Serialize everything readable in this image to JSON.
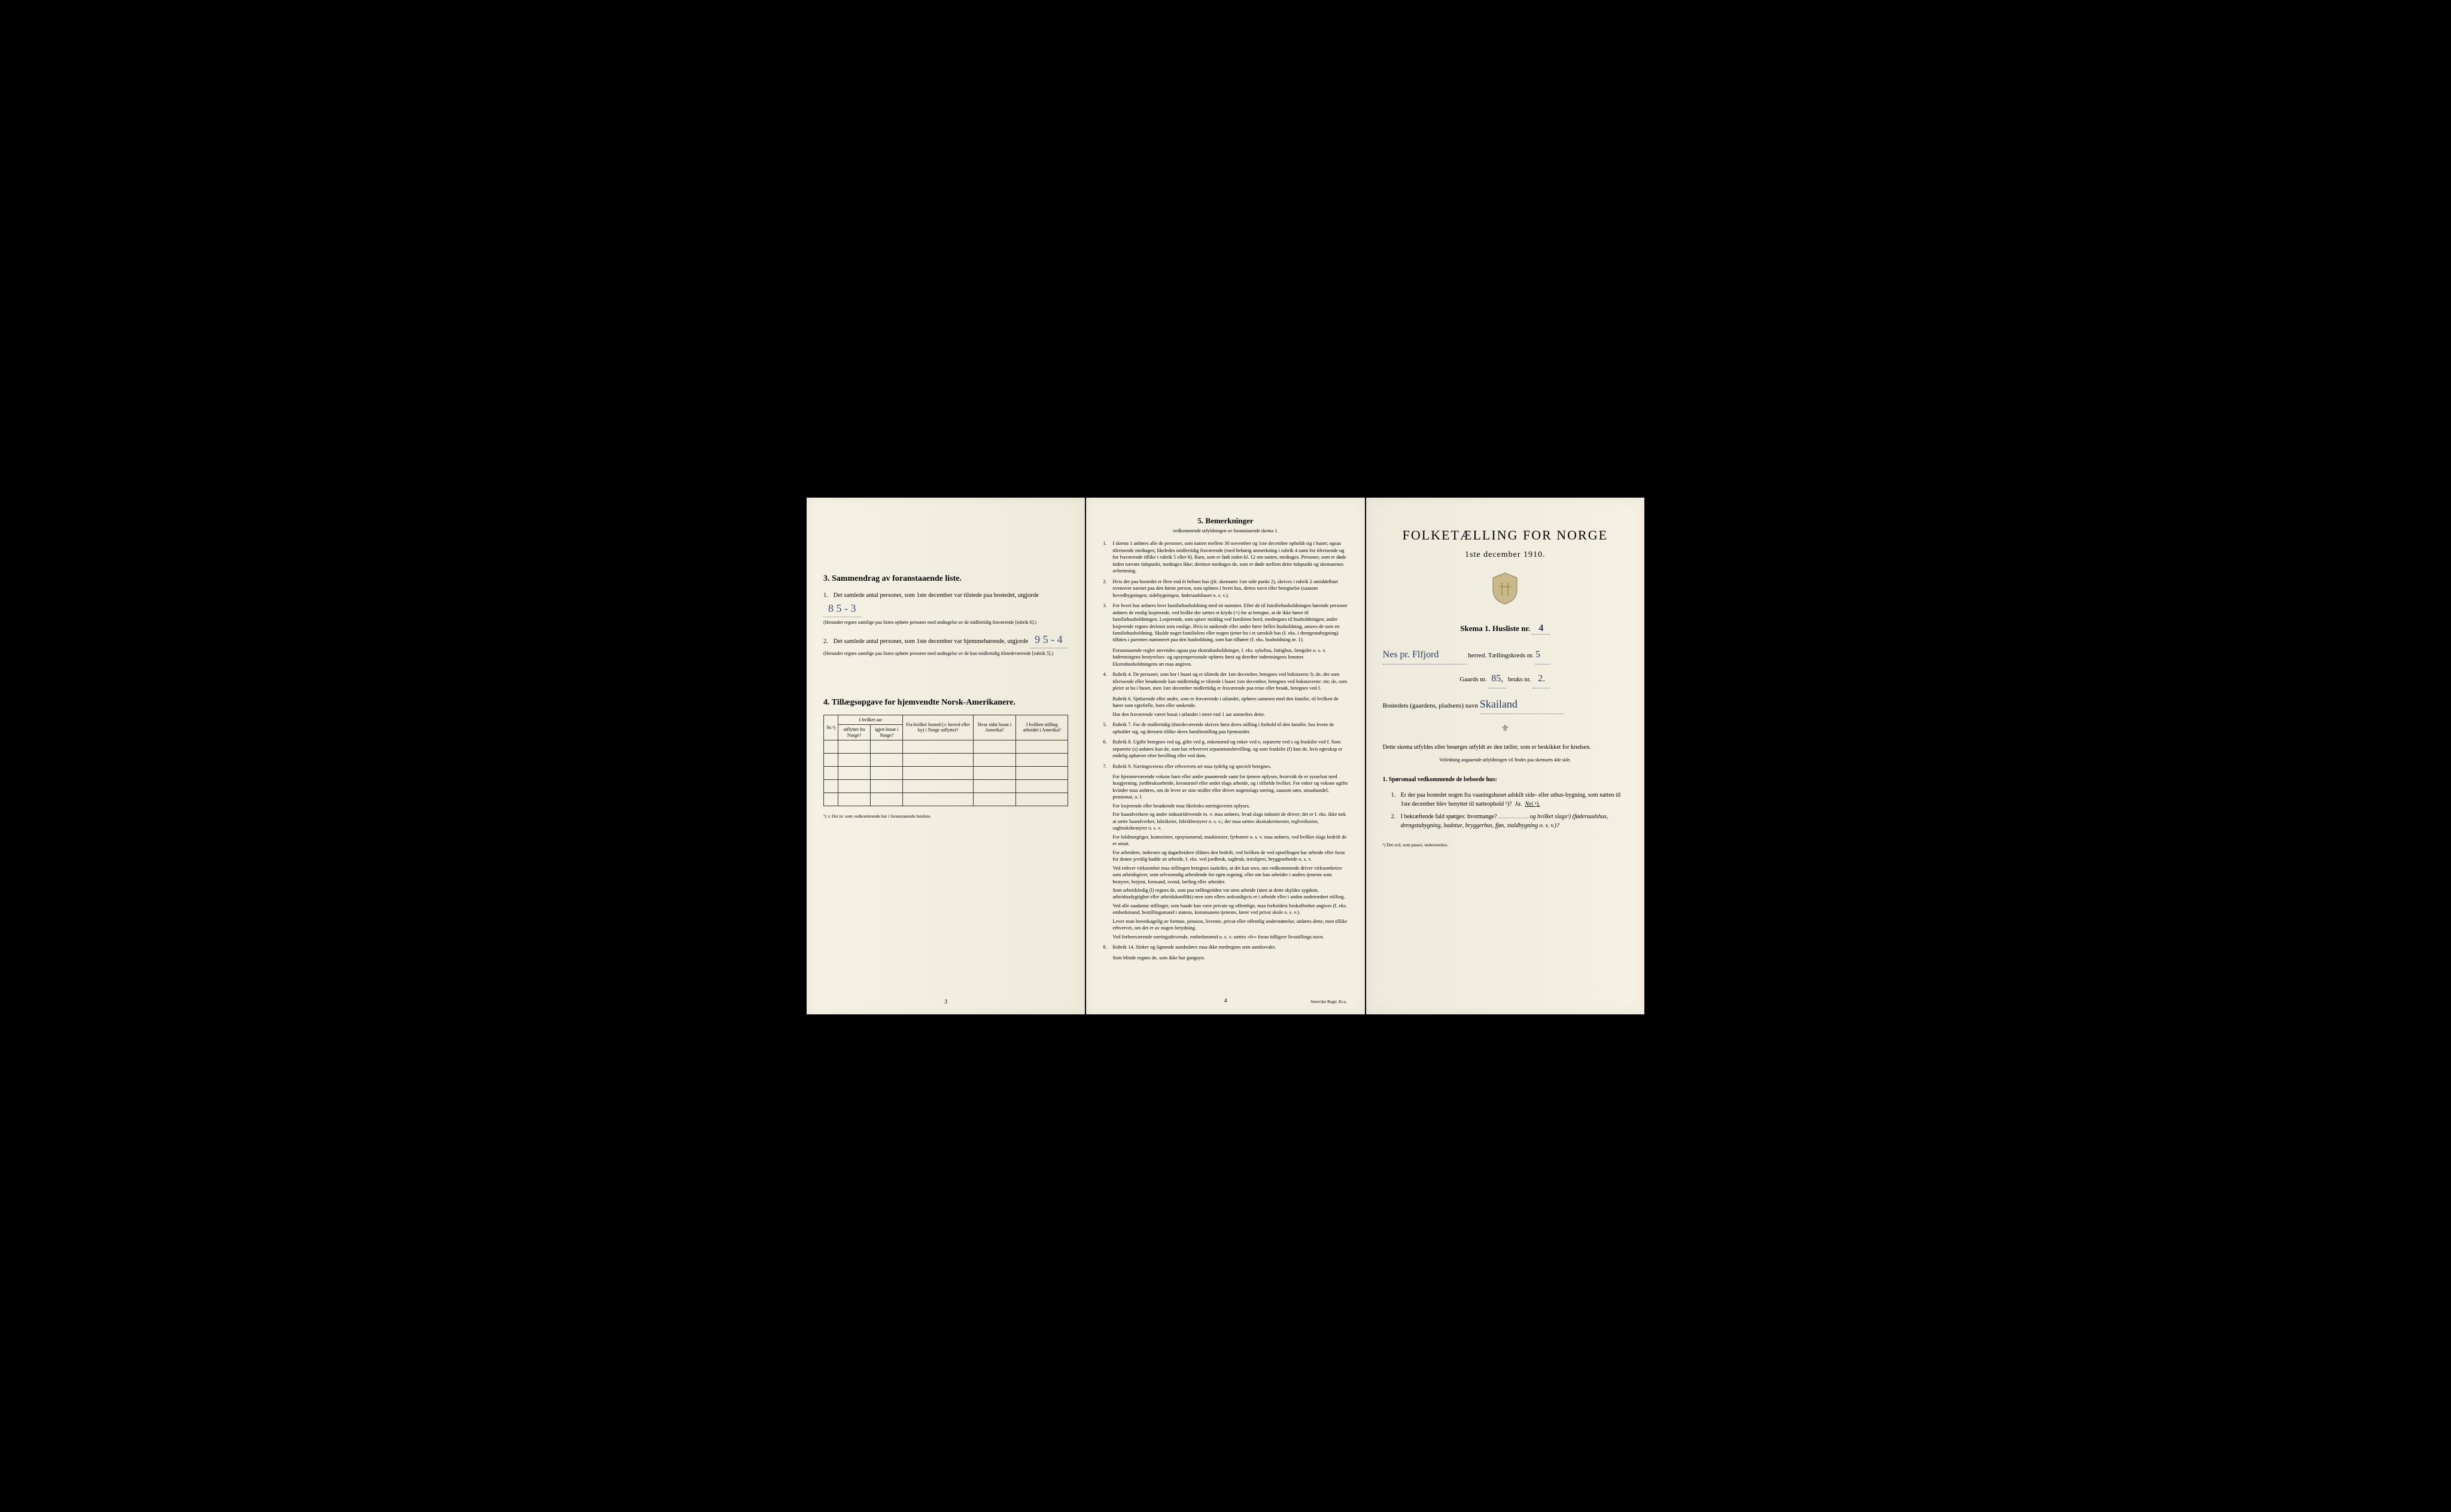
{
  "left": {
    "section3_title": "3.   Sammendrag av foranstaaende liste.",
    "item1_text": "Det samlede antal personer, som 1ste december var tilstede paa bostedet, utgjorde",
    "item1_value": "8    5 - 3",
    "item1_note": "(Herunder regnes samtlige paa listen opførte personer med undtagelse av de midlertidig fraværende [rubrik 6].)",
    "item2_text": "Det samlede antal personer, som 1ste december var hjemmehørende, utgjorde",
    "item2_value": "9   5 - 4",
    "item2_note": "(Herunder regnes samtlige paa listen opførte personer med undtagelse av de kun midlertidig tilstedeværende [rubrik 5].)",
    "section4_title": "4. Tillægsopgave for hjemvendte Norsk-Amerikanere.",
    "table": {
      "headers": {
        "nr": "Nr.¹)",
        "hvilket_aar": "I hvilket aar",
        "utflyttet": "utflyttet fra Norge?",
        "igjen_bosat": "igjen bosat i Norge?",
        "fra_bosted": "Fra hvilket bosted (ɔ: herred eller by) i Norge utflyttet?",
        "hvor_sidst": "Hvor sidst bosat i Amerika?",
        "hvilken_stilling": "I hvilken stilling arbeidet i Amerika?"
      }
    },
    "table_footnote": "¹) ɔ: Det nr. som vedkommende har i foranstaaende husliste.",
    "page_num": "3"
  },
  "middle": {
    "title": "5.   Bemerkninger",
    "subtitle": "vedkommende utfyldningen av foranstaaende skema 1.",
    "notes": [
      {
        "n": "1.",
        "t": "I skema 1 anføres alle de personer, som natten mellem 30 november og 1ste december opholdt sig i huset; ogsaa tilreisende medtages; likeledes midlertidig fraværende (med behørig anmerkning i rubrik 4 samt for tilreisende og for fraværende tillike i rubrik 5 eller 6). Barn, som er født inden kl. 12 om natten, medtages. Personer, som er døde inden nævnte tidspunkt, medtages ikke; derimot medtages de, som er døde mellem dette tidspunkt og skemaernes avhentning."
      },
      {
        "n": "2.",
        "t": "Hvis der paa bostedet er flere end ét beboet hus (jfr. skemaets 1ste side punkt 2), skrives i rubrik 2 umiddelbart ovenover navnet paa den første person, som opføres i hvert hus, dettes navn eller betegnelse (saasom hovedbygningen, sidebygningen, føderaadshuset o. s. v.)."
      },
      {
        "n": "3.",
        "t": "For hvert hus anføres hver familiehusholdning med sit nummer. Efter de til familiehusholdningen hørende personer anføres de enslig losjerende, ved hvilke der sættes et kryds (×) for at betegne, at de ikke hører til familiehusholdningen. Losjerende, som spiser middag ved familiens bord, medregnes til husholdningen; andre losjerende regnes derimot som enslige. Hvis to søskende eller andre fører fælles husholdning, ansees de som en familiehusholdning. Skulde noget familielem eller nogen tjener bo i et særskilt hus (f. eks. i drengestubygning) tilføies i parentes nummeret paa den husholdning, som han tilhører (f. eks. husholdning nr. 1)."
      },
      {
        "n": "",
        "t": "Foranstaaende regler anvendes ogsaa paa ekstrahusholdninger, f. eks. sykehus, fattighus, fængsler o. s. v. Indretningens bestyrelses- og opsynspersonale opføres først og derefter indretningens lemmer. Ekstrahusholdningens art maa angives."
      },
      {
        "n": "4.",
        "t": "Rubrik 4. De personer, som bor i huset og er tilstede der 1ste december, betegnes ved bokstaven: b; de, der som tilreisende eller besøkende kun midlertidig er tilstede i huset 1ste december, betegnes ved bokstaverne: mt; de, som pleier at bo i huset, men 1ste december midlertidig er fraværende paa reise eller besøk, betegnes ved f."
      },
      {
        "n": "",
        "t": "Rubrik 6. Sjøfarende eller andre, som er fraværende i utlandet, opføres sammen med den familie, til hvilken de hører som egtefælle, barn eller søskende."
      },
      {
        "n": "",
        "t": "Har den fraværende været bosat i utlandet i mere end 1 aar anmerkes dette."
      },
      {
        "n": "5.",
        "t": "Rubrik 7. For de midlertidig tilstedeværende skrives først deres stilling i forhold til den familie, hos hvem de opholder sig, og dernæst tillike deres familiestilling paa hjemstedet."
      },
      {
        "n": "6.",
        "t": "Rubrik 8. Ugifte betegnes ved ug, gifte ved g, enkemænd og enker ved e, separerte ved s og fraskilte ved f. Som separerte (s) anføres kun de, som har erhvervet separationsbevilling, og som fraskilte (f) kun de, hvis egteskap er endelig ophævet efter bevilling eller ved dom."
      },
      {
        "n": "7.",
        "t": "Rubrik 9. Næringsveiens eller erhvervets art maa tydelig og specielt betegnes."
      },
      {
        "n": "",
        "t": "For hjemmeværende voksne barn eller andre paarørende samt for tjenere oplyses, hvorvidt de er sysselsat med husgjerning, jordbruksarbeide, kreaturstel eller andet slags arbeide, og i tilfælde hvilket. For enker og voksne ugifte kvinder maa anføres, om de lever av sine midler eller driver nogenslags næring, saasom søm, smaahandel, pensionat, o. l."
      },
      {
        "n": "",
        "t": "For losjerende eller besøkende maa likeledes næringsveien oplyses."
      },
      {
        "n": "",
        "t": "For haandverkere og andre industridrivende m. v. maa anføres, hvad slags industri de driver; det er f. eks. ikke nok at sætte haandverker, fabrikeier, fabrikbestyrer o. s. v.; der maa sættes skomakermester, teglverkseier, sagbruksbestyrer o. s. v."
      },
      {
        "n": "",
        "t": "For fuldmægtiger, kontorister, opsynsmænd, maskinister, fyrbotere o. s. v. maa anføres, ved hvilket slags bedrift de er ansat."
      },
      {
        "n": "",
        "t": "For arbeidere, inderster og dagarbeidere tilføies den bedrift, ved hvilken de ved optællingen har arbeide eller forut for denne jevnlig hadde sit arbeide, f. eks. ved jordbruk, sagbruk, træsliperi, bryggearbeide o. s. v."
      },
      {
        "n": "",
        "t": "Ved enhver virksomhet maa stillingen betegnes saaledes, at det kan sees, om vedkommende driver virksomheten som arbeidsgiver, som selvstændig arbeidende for egen regning, eller om han arbeider i andres tjeneste som bestyrer, betjent, formand, svend, lærling eller arbeider."
      },
      {
        "n": "",
        "t": "Som arbeidsledig (l) regnes de, som paa tællingstiden var uten arbeide (uten at dette skyldes sygdom, arbeidsudygtighet eller arbeidskonflikt) men som ellers sedvanligvis er i arbeide eller i anden underordnet stilling."
      },
      {
        "n": "",
        "t": "Ved alle saadanne stillinger, som baade kan være private og offentlige, maa forholdets beskaffenhet angives (f. eks. embedsmand, bestillingsmand i statens, kommunens tjeneste, lærer ved privat skole o. s. v.)."
      },
      {
        "n": "",
        "t": "Lever man hovedsagelig av formue, pension, livrente, privat eller offentlig understøttelse, anføres dette, men tillike erhvervet, om det er av nogen betydning."
      },
      {
        "n": "",
        "t": "Ved forhenværende næringsdrivende, embedsmænd o. s. v. sættes «fv» foran tidligere livsstillings navn."
      },
      {
        "n": "8.",
        "t": "Rubrik 14. Sinker og lignende aandssløve maa ikke medregnes som aandssvake."
      },
      {
        "n": "",
        "t": "Som blinde regnes de, som ikke har gangsyn."
      }
    ],
    "page_num": "4",
    "printer": "Steen'ske Bogtr.  Kr.a."
  },
  "right": {
    "main_title": "FOLKETÆLLING FOR NORGE",
    "subtitle": "1ste december 1910.",
    "skema_label": "Skema 1.  Husliste nr.",
    "husliste_nr": "4",
    "herred_handwritten": "Nes pr. Flfjord",
    "herred_label": "herred.  Tællingskreds nr.",
    "tellingkreds_nr": "5",
    "gaards_label": "Gaards nr.",
    "gaards_nr": "85,",
    "bruks_label": "bruks nr.",
    "bruks_nr": "2.",
    "bosted_label": "Bostedets (gaardens, pladsens) navn",
    "bosted_navn": "Skailand",
    "instruction1": "Dette skema utfyldes eller besørges utfyldt av den tæller, som er beskikket for kredsen.",
    "instruction2": "Veiledning angaaende utfyldningen vil findes paa skemaets 4de side.",
    "section1_title": "1. Spørsmaal vedkommende de beboede hus:",
    "q1": "Er der paa bostedet nogen fra vaaningshuset adskilt side- eller uthus-bygning, som natten til 1ste december blev benyttet til natteophold ¹)?",
    "q1_ja": "Ja.",
    "q1_nei": "Nei ¹).",
    "q2": "I bekræftende fald spørges: hvormange?",
    "q2_cont": "og hvilket slags¹) (føderaadshus, drengstubygning, badstue, bryggerhus, fjøs, staldbygning o. s. v.)?",
    "footnote": "¹) Det ord, som passer, understrekes."
  }
}
